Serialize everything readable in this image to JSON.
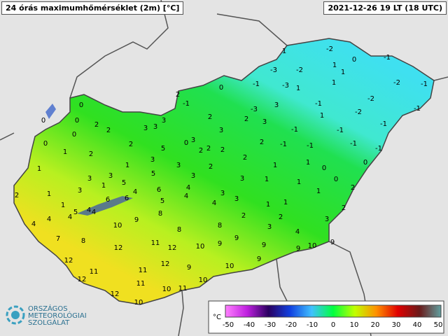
{
  "header": {
    "title": "24 órás maximumhőmérséklet (2m) [°C]",
    "time": "2021-12-26 19 LT (18 UTC)"
  },
  "stations": [
    1,
    -2,
    0,
    -1,
    1,
    -3,
    -2,
    1,
    -2,
    -1,
    -1,
    -3,
    1,
    1,
    0,
    2,
    -1,
    -3,
    3,
    -1,
    -2,
    -1,
    -2,
    2,
    3,
    1,
    -1,
    2,
    3,
    0,
    0,
    0,
    2,
    2,
    3,
    3,
    3,
    -1,
    -1,
    0,
    2,
    5,
    0,
    3,
    2,
    2,
    -1,
    -1,
    -1,
    -1,
    0,
    1,
    2,
    2,
    2,
    2,
    3,
    1,
    3,
    1,
    1,
    0,
    0,
    1,
    3,
    3,
    5,
    3,
    2,
    3,
    1,
    1,
    0,
    2,
    1,
    3,
    1,
    5,
    4,
    6,
    4,
    4,
    3,
    1,
    2,
    1,
    5,
    4,
    6,
    6,
    5,
    4,
    3,
    1,
    1,
    4,
    4,
    4,
    4,
    8,
    2,
    2,
    3,
    2,
    10,
    9,
    3,
    4,
    7,
    8,
    8,
    8,
    9,
    12,
    11,
    12,
    10,
    9,
    9,
    9,
    10,
    9,
    12,
    11,
    11,
    12,
    9,
    10,
    9,
    12,
    11,
    10,
    11,
    10,
    12,
    10
  ],
  "legend": {
    "unit": "°C",
    "lim": [
      -50,
      50
    ],
    "ticks": [
      -50,
      -40,
      -30,
      -20,
      -10,
      0,
      10,
      20,
      30,
      40,
      50
    ]
  },
  "logo": {
    "line1": "ORSZÁGOS",
    "line2": "METEOROLÓGIAI",
    "line3": "SZOLGÁLAT"
  }
}
